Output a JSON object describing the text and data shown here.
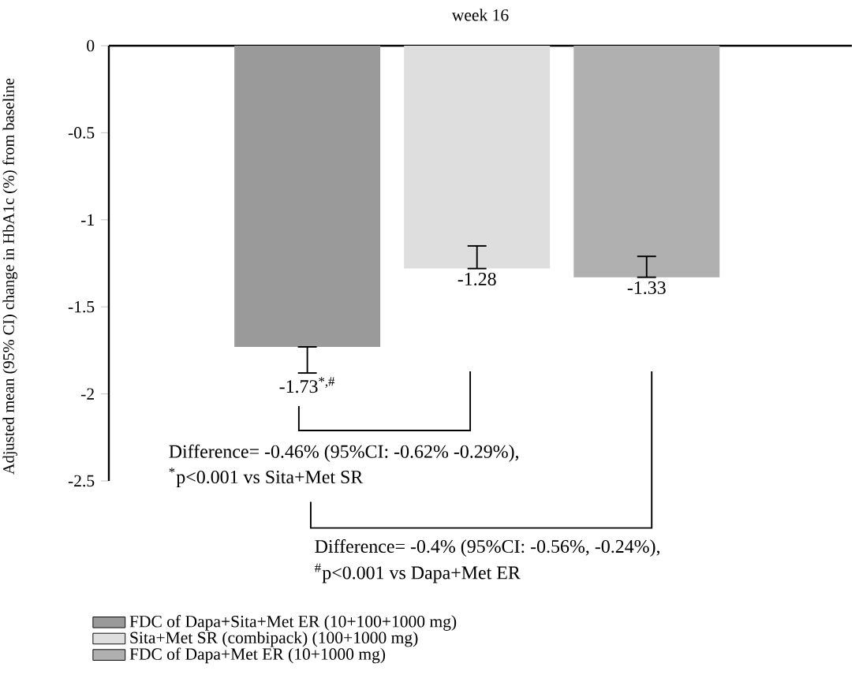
{
  "chart_data": {
    "type": "bar",
    "title": "week 16",
    "ylabel": "Adjusted mean (95% CI)  change in  HbA1c (%)  from baseline",
    "categories": [
      null,
      null,
      null
    ],
    "series": [
      {
        "name": "FDC of Dapa+Sita+Met ER (10+100+1000 mg)",
        "color": "#9a9a9a",
        "values": [
          -1.73,
          null,
          null
        ],
        "errors": [
          [
            -1.88,
            -1.73
          ],
          null,
          null
        ],
        "value_labels": [
          "-1.73$^{*,#}$",
          null,
          null
        ]
      },
      {
        "name": "Sita+Met SR (combipack) (100+1000 mg)",
        "color": "#dedede",
        "values": [
          null,
          -1.28,
          null
        ],
        "errors": [
          null,
          [
            -1.28,
            -1.15
          ],
          null
        ],
        "value_labels": [
          null,
          "-1.28",
          null
        ]
      },
      {
        "name": "FDC of Dapa+Met ER (10+1000 mg)",
        "color": "#b0b0b0",
        "values": [
          null,
          null,
          -1.33
        ],
        "errors": [
          null,
          null,
          [
            -1.33,
            -1.21
          ]
        ],
        "value_labels": [
          null,
          null,
          "-1.33"
        ]
      }
    ],
    "ylim": [
      -2.5,
      0
    ],
    "yticks": [
      0,
      -0.5,
      -1,
      -1.5,
      -2,
      -2.5
    ],
    "tick_labels": "y",
    "legend": "bottom",
    "annotations": [
      "Difference= -0.46% (95%CI: -0.62% -0.29%),",
      "$^{*}$p<0.001 vs Sita+Met SR",
      "Difference= -0.4% (95%CI: -0.56%, -0.24%),",
      "$^{#}$p<0.001 vs Dapa+Met ER"
    ]
  }
}
